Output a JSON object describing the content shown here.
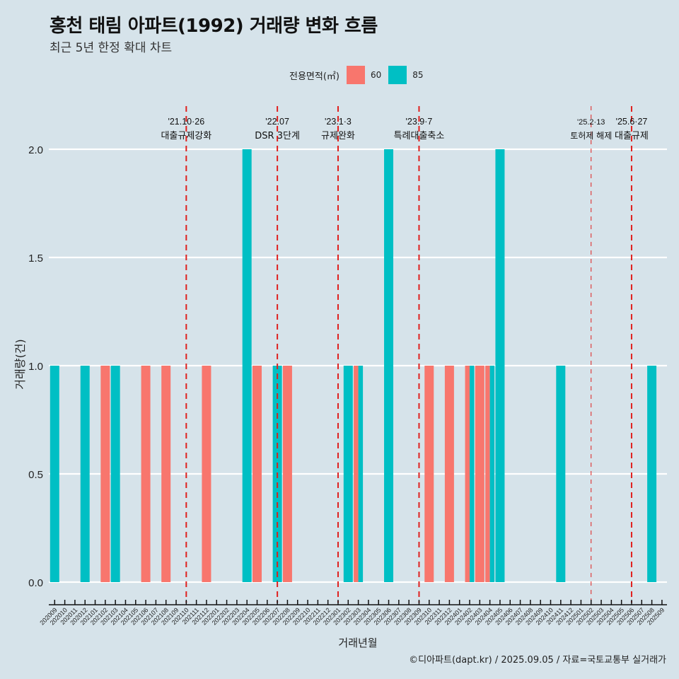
{
  "header": {
    "title": "홍천 태림 아파트(1992) 거래량 변화 흐름",
    "subtitle": "최근 5년 한정 확대 차트"
  },
  "legend": {
    "title": "전용면적(㎡)",
    "items": [
      {
        "label": "60",
        "color": "#f8766d"
      },
      {
        "label": "85",
        "color": "#00bfc4"
      }
    ]
  },
  "caption": "©디아파트(dapt.kr) / 2025.09.05 / 자료=국토교통부 실거래가",
  "chart_data": {
    "type": "bar",
    "title": "홍천 태림 아파트(1992) 거래량 변화 흐름",
    "subtitle": "최근 5년 한정 확대 차트",
    "xlabel": "거래년월",
    "ylabel": "거래량(건)",
    "ylim": [
      0,
      2
    ],
    "yticks": [
      "0.0",
      "0.5",
      "1.0",
      "1.5",
      "2.0"
    ],
    "ytick_values": [
      0,
      0.5,
      1.0,
      1.5,
      2.0
    ],
    "grid": true,
    "legend_position": "top",
    "categories": [
      "202009",
      "202010",
      "202011",
      "202012",
      "202101",
      "202102",
      "202103",
      "202104",
      "202105",
      "202106",
      "202107",
      "202108",
      "202109",
      "202110",
      "202111",
      "202112",
      "202201",
      "202202",
      "202203",
      "202204",
      "202205",
      "202206",
      "202207",
      "202208",
      "202209",
      "202210",
      "202211",
      "202212",
      "202301",
      "202302",
      "202303",
      "202304",
      "202305",
      "202306",
      "202307",
      "202308",
      "202309",
      "202310",
      "202311",
      "202312",
      "202401",
      "202402",
      "202403",
      "202404",
      "202405",
      "202406",
      "202407",
      "202408",
      "202409",
      "202410",
      "202411",
      "202412",
      "202501",
      "202502",
      "202503",
      "202504",
      "202505",
      "202506",
      "202507",
      "202508",
      "202509"
    ],
    "series": [
      {
        "name": "60",
        "color": "#f8766d",
        "points": [
          {
            "x": "202102",
            "y": 1
          },
          {
            "x": "202106",
            "y": 1
          },
          {
            "x": "202108",
            "y": 1
          },
          {
            "x": "202112",
            "y": 1
          },
          {
            "x": "202205",
            "y": 1
          },
          {
            "x": "202208",
            "y": 1
          },
          {
            "x": "202303",
            "y": 1
          },
          {
            "x": "202310",
            "y": 1
          },
          {
            "x": "202312",
            "y": 1
          },
          {
            "x": "202402",
            "y": 1
          },
          {
            "x": "202403",
            "y": 1
          },
          {
            "x": "202404",
            "y": 1
          }
        ]
      },
      {
        "name": "85",
        "color": "#00bfc4",
        "points": [
          {
            "x": "202009",
            "y": 1
          },
          {
            "x": "202012",
            "y": 1
          },
          {
            "x": "202103",
            "y": 1
          },
          {
            "x": "202204",
            "y": 2
          },
          {
            "x": "202207",
            "y": 1
          },
          {
            "x": "202302",
            "y": 1
          },
          {
            "x": "202303",
            "y": 1
          },
          {
            "x": "202306",
            "y": 2
          },
          {
            "x": "202402",
            "y": 1
          },
          {
            "x": "202404",
            "y": 1
          },
          {
            "x": "202405",
            "y": 2
          },
          {
            "x": "202411",
            "y": 1
          },
          {
            "x": "202508",
            "y": 1
          }
        ]
      }
    ],
    "annotations": [
      {
        "x": "202110",
        "date": "'21.10·26",
        "label": "대출규제강화",
        "style": "bold"
      },
      {
        "x": "202207",
        "date": "'22.07",
        "label": "DSR 3단계",
        "style": "bold"
      },
      {
        "x": "202301",
        "date": "'23.1·3",
        "label": "규제완화",
        "style": "bold"
      },
      {
        "x": "202309",
        "date": "'23.9·7",
        "label": "특례대출축소",
        "style": "bold"
      },
      {
        "x": "202502",
        "date": "'25.2·13",
        "label": "토허제 해제",
        "style": "thin"
      },
      {
        "x": "202506",
        "date": "'25.6·27",
        "label": "대출규제",
        "style": "bold"
      }
    ],
    "annotation_color": "#e0201e"
  }
}
